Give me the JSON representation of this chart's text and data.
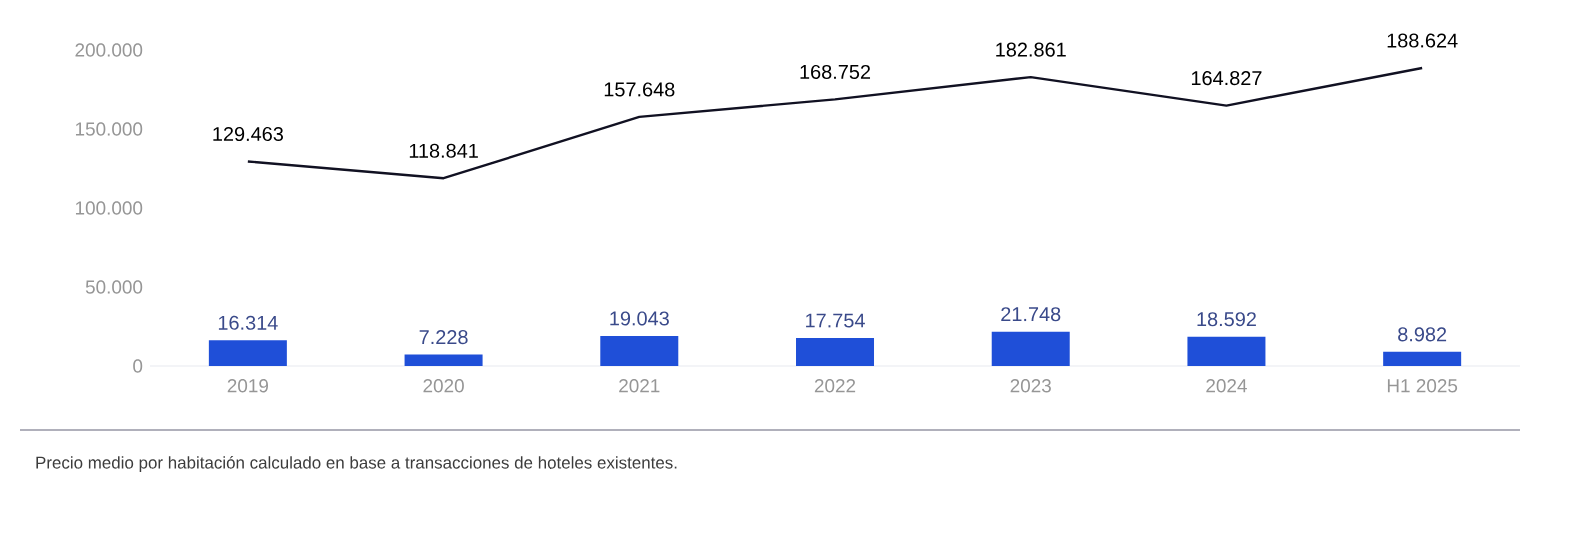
{
  "chart_data": {
    "type": "bar",
    "categories": [
      "2019",
      "2020",
      "2021",
      "2022",
      "2023",
      "2024",
      "H1 2025"
    ],
    "series": [
      {
        "color": "#1f4fd8",
        "values": [
          16314,
          7228,
          19043,
          17754,
          21748,
          18592,
          8982
        ],
        "value_labels": [
          "16.314",
          "7.228",
          "19.043",
          "17.754",
          "21.748",
          "18.592",
          "8.982"
        ]
      },
      {
        "type": "line",
        "color": "#111122",
        "values": [
          129463,
          118841,
          157648,
          168752,
          182861,
          164827,
          188624
        ],
        "value_labels": [
          "129.463",
          "118.841",
          "157.648",
          "168.752",
          "182.861",
          "164.827",
          "188.624"
        ]
      }
    ],
    "ylim": [
      0,
      200000
    ],
    "yticks": [
      0,
      {
        "value": 50000,
        "label": "50.000"
      },
      {
        "value": 100000,
        "label": "100.000"
      },
      {
        "value": 150000,
        "label": "150.000"
      },
      {
        "value": 200000,
        "label": "200.000"
      }
    ],
    "grid": false,
    "annotations": [
      "Precio medio por habitación calculado en base a transacciones de hoteles existentes."
    ]
  }
}
